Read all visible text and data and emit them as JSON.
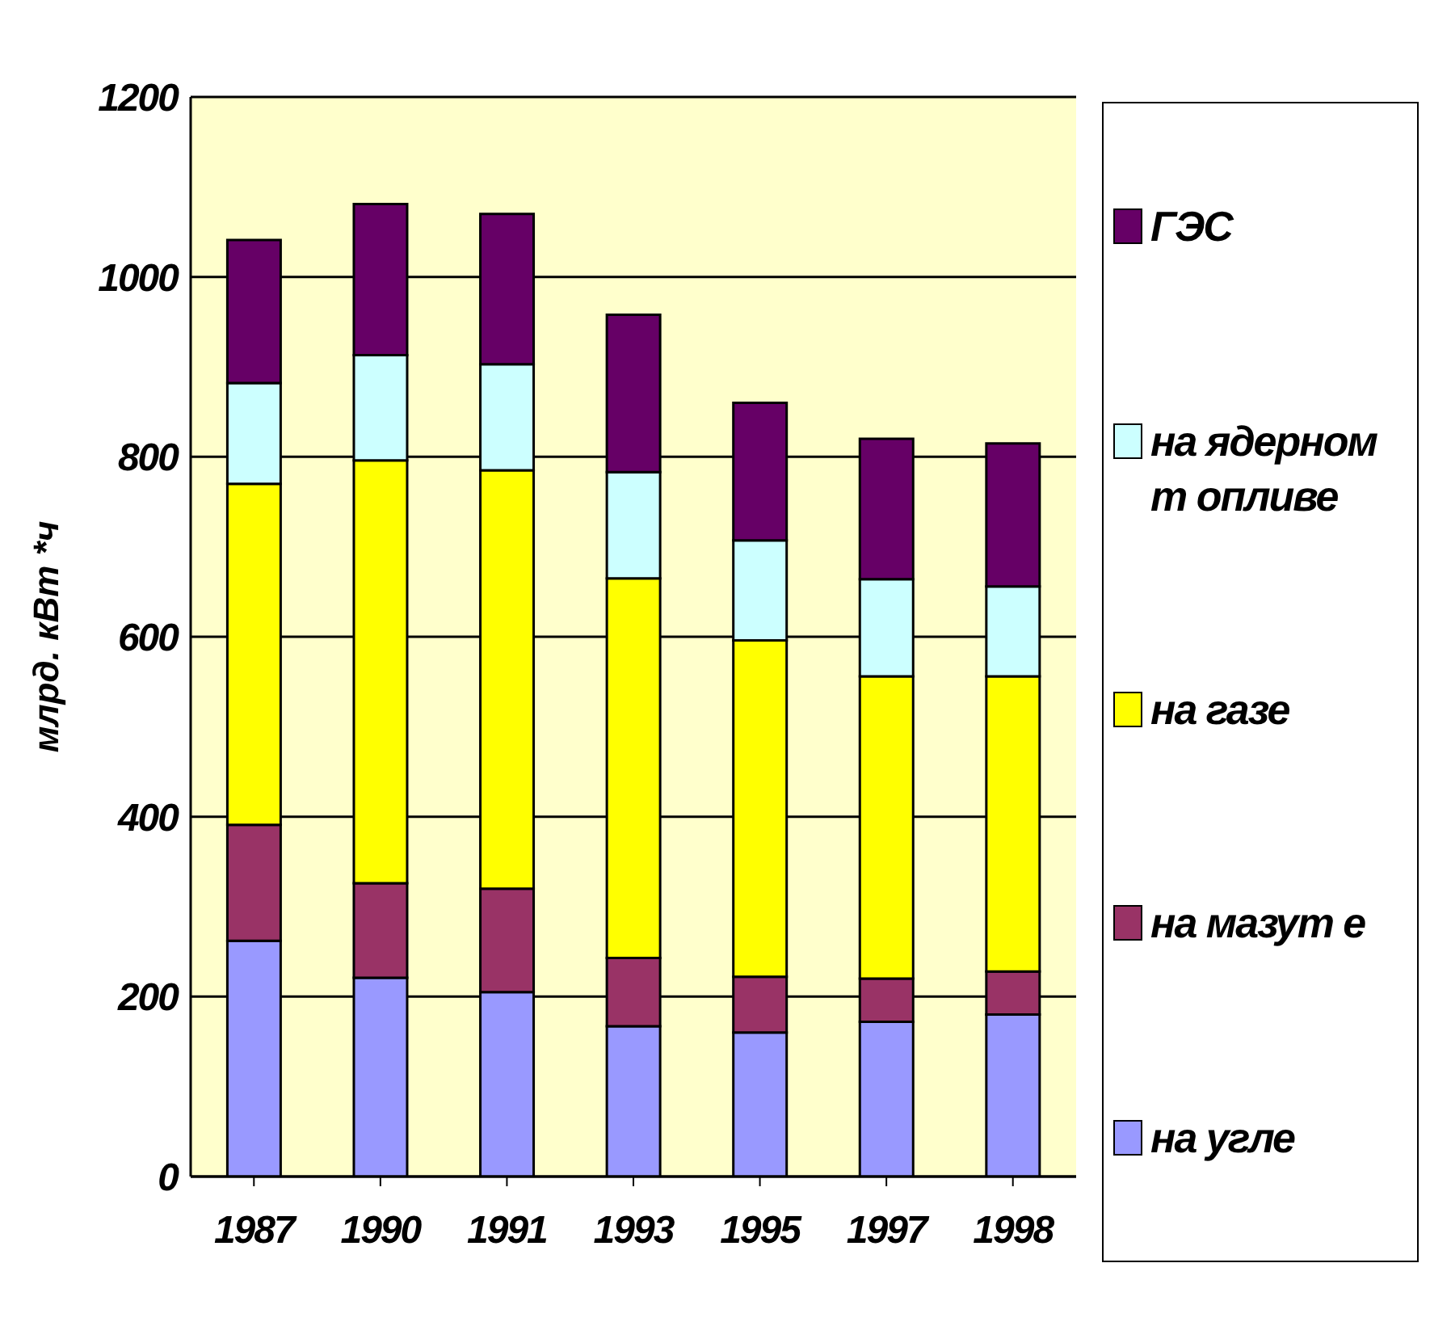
{
  "chart_data": {
    "type": "bar",
    "stacked": true,
    "ylabel": "млрд. кВт *ч",
    "categories": [
      "1987",
      "1990",
      "1991",
      "1993",
      "1995",
      "1997",
      "1998"
    ],
    "series": [
      {
        "name": "на угле",
        "color": "#9999ff",
        "values": [
          262,
          221,
          205,
          167,
          160,
          172,
          180
        ]
      },
      {
        "name": "на мазут е",
        "color": "#993366",
        "values": [
          129,
          105,
          115,
          76,
          62,
          48,
          48
        ]
      },
      {
        "name": "на газе",
        "color": "#ffff00",
        "values": [
          379,
          470,
          465,
          422,
          374,
          336,
          328
        ]
      },
      {
        "name": "на ядерном т опливе",
        "color": "#ccffff",
        "values": [
          112,
          117,
          118,
          118,
          111,
          108,
          100
        ]
      },
      {
        "name": "ГЭС",
        "color": "#660066",
        "values": [
          159,
          168,
          167,
          175,
          153,
          156,
          159
        ]
      }
    ],
    "ylim": [
      0,
      1200
    ],
    "yticks": [
      0,
      200,
      400,
      600,
      800,
      1000,
      1200
    ],
    "grid": "y",
    "legend": "right"
  }
}
